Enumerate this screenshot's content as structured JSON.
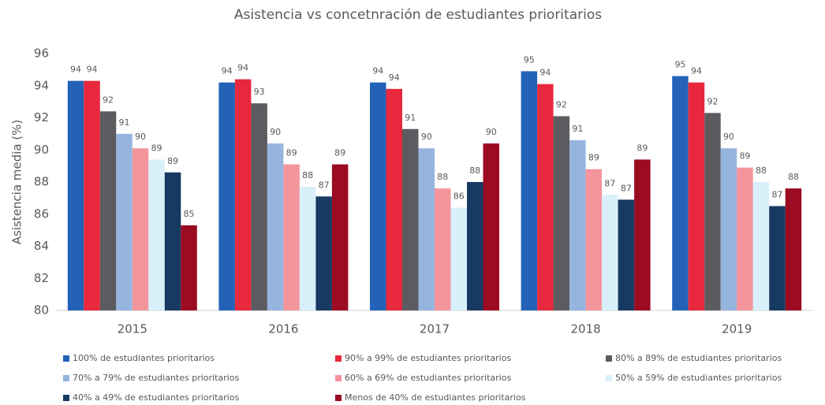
{
  "chart_data": {
    "type": "bar",
    "title": "Asistencia vs concetnración de estudiantes prioritarios",
    "y_label": "Asistencia media (%)",
    "categories": [
      "2015",
      "2016",
      "2017",
      "2018",
      "2019"
    ],
    "ylim": [
      80,
      96
    ],
    "yticks": [
      80,
      82,
      84,
      86,
      88,
      90,
      92,
      94,
      96
    ],
    "series": [
      {
        "name": "100% de estudiantes prioritarios",
        "color": "#2462b8",
        "values": [
          94.3,
          94.2,
          94.2,
          94.9,
          94.6
        ],
        "value_labels": [
          "94",
          "94",
          "94",
          "95",
          "95"
        ]
      },
      {
        "name": "90% a 99% de estudiantes prioritarios",
        "color": "#e8283c",
        "values": [
          94.3,
          94.4,
          93.8,
          94.1,
          94.2
        ],
        "value_labels": [
          "94",
          "94",
          "94",
          "94",
          "94"
        ]
      },
      {
        "name": "80% a 89% de estudiantes prioritarios",
        "color": "#5b5b60",
        "values": [
          92.4,
          92.9,
          91.3,
          92.1,
          92.3
        ],
        "value_labels": [
          "92",
          "93",
          "91",
          "92",
          "92"
        ]
      },
      {
        "name": "70% a 79% de estudiantes prioritarios",
        "color": "#95b5df",
        "values": [
          91.0,
          90.4,
          90.1,
          90.6,
          90.1
        ],
        "value_labels": [
          "91",
          "90",
          "90",
          "91",
          "90"
        ]
      },
      {
        "name": "60% a 69%  de estudiantes prioritarios",
        "color": "#f4949c",
        "values": [
          90.1,
          89.1,
          87.6,
          88.8,
          88.9
        ],
        "value_labels": [
          "90",
          "89",
          "88",
          "89",
          "89"
        ]
      },
      {
        "name": "50% a 59% de estudiantes prioritarios",
        "color": "#d9f0fb",
        "values": [
          89.4,
          87.7,
          86.4,
          87.2,
          88.0
        ],
        "value_labels": [
          "89",
          "88",
          "86",
          "87",
          "88"
        ]
      },
      {
        "name": "40% a 49% de estudiantes prioritarios",
        "color": "#173a63",
        "values": [
          88.6,
          87.1,
          88.0,
          86.9,
          86.5
        ],
        "value_labels": [
          "89",
          "87",
          "88",
          "87",
          "87"
        ]
      },
      {
        "name": "Menos de 40% de estudiantes prioritarios",
        "color": "#9b0b22",
        "values": [
          85.3,
          89.1,
          90.4,
          89.4,
          87.6
        ],
        "value_labels": [
          "85",
          "89",
          "90",
          "89",
          "88"
        ]
      }
    ]
  }
}
